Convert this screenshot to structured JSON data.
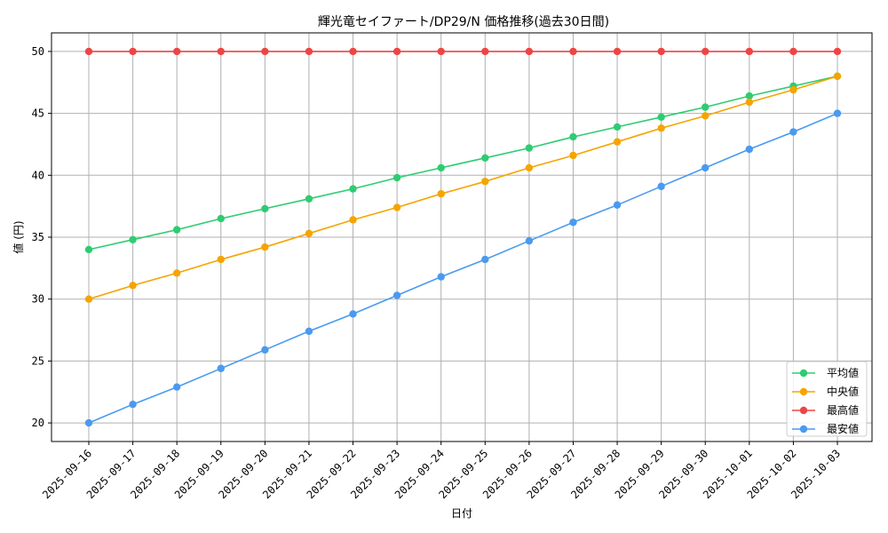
{
  "chart_data": {
    "type": "line",
    "title": "輝光竜セイファート/DP29/N 価格推移(過去30日間)",
    "xlabel": "日付",
    "ylabel": "値 (円)",
    "ylim": [
      18.5,
      51.5
    ],
    "yticks": [
      20,
      25,
      30,
      35,
      40,
      45,
      50
    ],
    "grid": true,
    "legend_position": "bottom-right",
    "categories": [
      "2025-09-16",
      "2025-09-17",
      "2025-09-18",
      "2025-09-19",
      "2025-09-20",
      "2025-09-21",
      "2025-09-22",
      "2025-09-23",
      "2025-09-24",
      "2025-09-25",
      "2025-09-26",
      "2025-09-27",
      "2025-09-28",
      "2025-09-29",
      "2025-09-30",
      "2025-10-01",
      "2025-10-02",
      "2025-10-03"
    ],
    "series": [
      {
        "name": "平均値",
        "color": "#2ecc71",
        "values": [
          34.0,
          34.8,
          35.6,
          36.5,
          37.3,
          38.1,
          38.9,
          39.8,
          40.6,
          41.4,
          42.2,
          43.1,
          43.9,
          44.7,
          45.5,
          46.4,
          47.2,
          48.0
        ]
      },
      {
        "name": "中央値",
        "color": "#f5a400",
        "values": [
          30.0,
          31.1,
          32.1,
          33.2,
          34.2,
          35.3,
          36.4,
          37.4,
          38.5,
          39.5,
          40.6,
          41.6,
          42.7,
          43.8,
          44.8,
          45.9,
          46.9,
          48.0
        ]
      },
      {
        "name": "最高値",
        "color": "#ef4444",
        "values": [
          50,
          50,
          50,
          50,
          50,
          50,
          50,
          50,
          50,
          50,
          50,
          50,
          50,
          50,
          50,
          50,
          50,
          50
        ]
      },
      {
        "name": "最安値",
        "color": "#4a9af0",
        "values": [
          20.0,
          21.5,
          22.9,
          24.4,
          25.9,
          27.4,
          28.8,
          30.3,
          31.8,
          33.2,
          34.7,
          36.2,
          37.6,
          39.1,
          40.6,
          42.1,
          43.5,
          45.0
        ]
      }
    ]
  }
}
